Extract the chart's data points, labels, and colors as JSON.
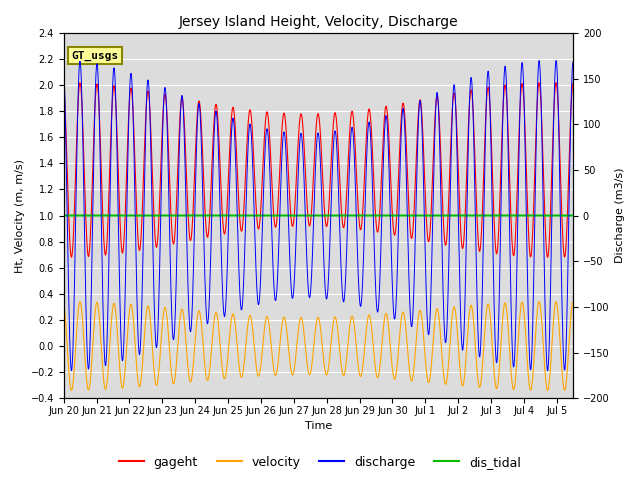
{
  "title": "Jersey Island Height, Velocity, Discharge",
  "xlabel": "Time",
  "ylabel_left": "Ht, Velocity (m, m/s)",
  "ylabel_right": "Discharge (m3/s)",
  "ylim_left": [
    -0.4,
    2.4
  ],
  "ylim_right": [
    -200,
    200
  ],
  "yticks_left": [
    -0.4,
    -0.2,
    0.0,
    0.2,
    0.4,
    0.6,
    0.8,
    1.0,
    1.2,
    1.4,
    1.6,
    1.8,
    2.0,
    2.2,
    2.4
  ],
  "yticks_right": [
    -200,
    -150,
    -100,
    -50,
    0,
    50,
    100,
    150,
    200
  ],
  "xtick_labels": [
    "Jun 20",
    "Jun 21",
    "Jun 22",
    "Jun 23",
    "Jun 24",
    "Jun 25",
    "Jun 26",
    "Jun 27",
    "Jun 28",
    "Jun 29",
    "Jun 30",
    "Jul 1",
    "Jul 2",
    "Jul 3",
    "Jul 4",
    "Jul 5"
  ],
  "colors": {
    "gageht": "#FF0000",
    "velocity": "#FFA500",
    "discharge": "#0000FF",
    "dis_tidal": "#00BB00"
  },
  "bg_color": "#DCDCDC",
  "fig_bg": "#FFFFFF",
  "annotation_text": "GT_usgs",
  "annotation_bg": "#FFFF99",
  "annotation_border": "#888800",
  "tidal_period_hours": 12.42,
  "spring_neap_days": 14.77,
  "gageht_mean": 1.35,
  "gageht_amp_base": 0.55,
  "gageht_amp_mod": 0.12,
  "velocity_mean": 0.0,
  "velocity_amp_base": 0.28,
  "velocity_amp_mod": 0.06,
  "discharge_amp_base": 130,
  "discharge_amp_mod": 40,
  "dis_tidal_value": 1.0,
  "num_days": 15.5,
  "xlim": [
    0,
    15.5
  ],
  "phase_gageht": 0.3,
  "phase_velocity": 1.87,
  "phase_discharge": 1.87
}
